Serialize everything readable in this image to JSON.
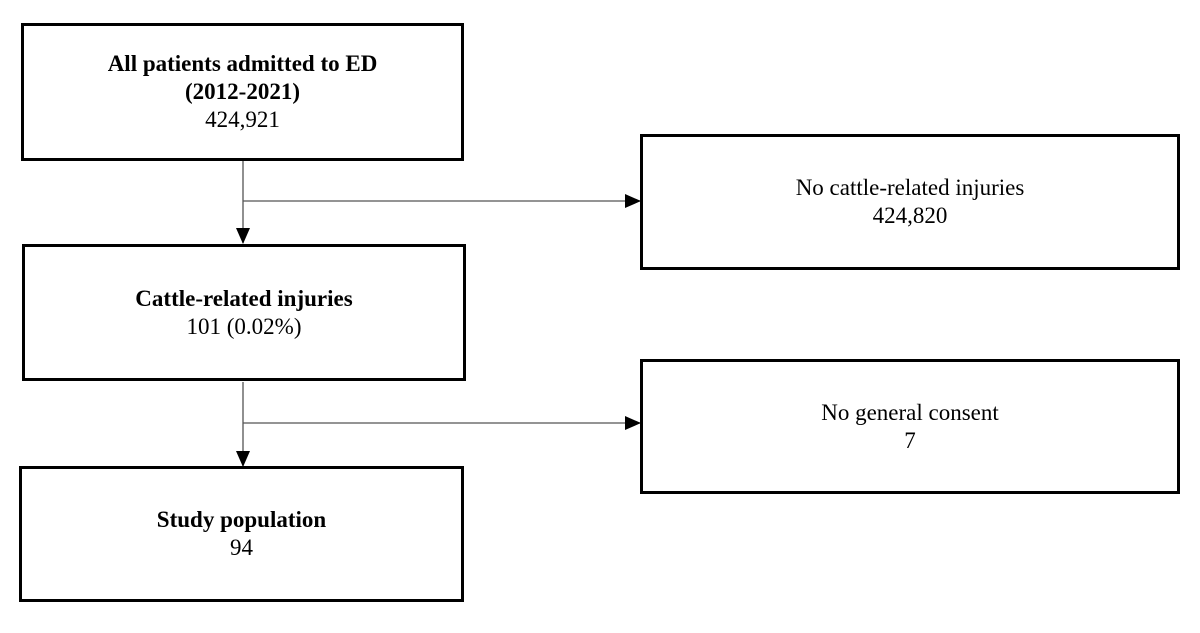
{
  "boxes": {
    "all_patients": {
      "title_line1": "All patients admitted to ED",
      "title_line2": "(2012-2021)",
      "count": "424,921"
    },
    "no_cattle": {
      "title": "No cattle-related injuries",
      "count": "424,820"
    },
    "cattle": {
      "title": "Cattle-related injuries",
      "count": "101 (0.02%)"
    },
    "no_consent": {
      "title": "No general consent",
      "count": "7"
    },
    "study": {
      "title": "Study population",
      "count": "94"
    }
  }
}
